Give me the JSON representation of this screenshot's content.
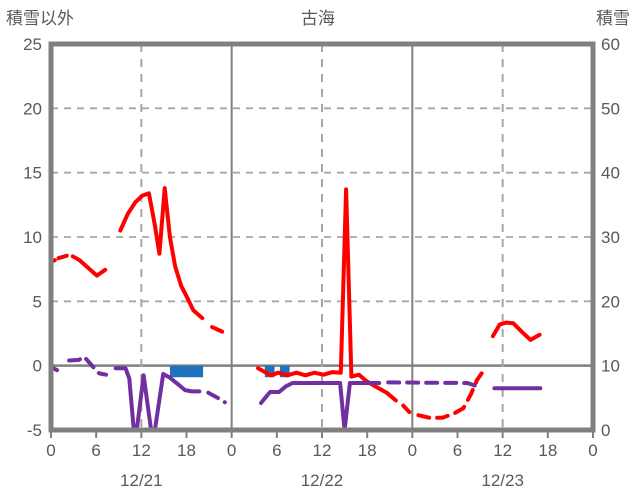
{
  "chart_data": {
    "type": "line",
    "title": "古海",
    "left_axis": {
      "label": "積雪以外",
      "min": -5,
      "max": 25,
      "ticks": [
        "25",
        "20",
        "15",
        "10",
        "5",
        "0",
        "-5"
      ]
    },
    "right_axis": {
      "label": "積雪",
      "min": 0,
      "max": 60,
      "ticks": [
        "60",
        "50",
        "40",
        "30",
        "20",
        "10",
        "0"
      ]
    },
    "x_axis": {
      "hours_total": 72,
      "hour_tick_step": 6,
      "hour_cycle_labels": [
        "0",
        "6",
        "12",
        "18"
      ],
      "final_hour_label": "0",
      "day_labels": [
        "12/21",
        "12/22",
        "12/23"
      ],
      "grid": {
        "solid_day_boundaries_hours": [
          24,
          48
        ],
        "dashed_noon_hours": [
          12,
          36,
          60
        ]
      }
    },
    "grid_on": true,
    "legend": "none",
    "series": [
      {
        "name": "series-red",
        "color": "#FF0000",
        "axis": "left",
        "segments": [
          {
            "style": "solid",
            "points": [
              [
                0,
                8.05
              ],
              [
                0.5,
                8.2
              ]
            ]
          },
          {
            "style": "dashed",
            "points": [
              [
                1.0,
                8.35
              ],
              [
                2.1,
                8.55
              ]
            ]
          },
          {
            "style": "solid",
            "points": [
              [
                2.9,
                8.5
              ],
              [
                3.8,
                8.2
              ],
              [
                6.1,
                7.0
              ],
              [
                7.2,
                7.45
              ]
            ]
          },
          {
            "style": "solid",
            "points": [
              [
                9.2,
                10.5
              ],
              [
                10.2,
                11.8
              ],
              [
                11.2,
                12.7
              ],
              [
                12.1,
                13.2
              ],
              [
                13.0,
                13.4
              ],
              [
                13.8,
                10.9
              ],
              [
                14.4,
                8.7
              ],
              [
                15.1,
                13.8
              ],
              [
                15.8,
                10.0
              ],
              [
                16.5,
                7.7
              ],
              [
                17.3,
                6.2
              ],
              [
                18.0,
                5.4
              ],
              [
                18.9,
                4.3
              ],
              [
                20.1,
                3.7
              ]
            ]
          },
          {
            "style": "dashed",
            "points": [
              [
                21.4,
                3.0
              ],
              [
                22.9,
                2.6
              ]
            ]
          },
          {
            "style": "solid",
            "points": [
              [
                27.5,
                -0.2
              ],
              [
                29.2,
                -0.75
              ],
              [
                30.2,
                -0.55
              ],
              [
                31.4,
                -0.75
              ],
              [
                32.6,
                -0.55
              ],
              [
                33.8,
                -0.75
              ],
              [
                35.0,
                -0.55
              ],
              [
                36.2,
                -0.7
              ],
              [
                37.4,
                -0.5
              ],
              [
                38.5,
                -0.55
              ],
              [
                39.2,
                13.7
              ],
              [
                39.9,
                -0.85
              ],
              [
                40.9,
                -0.7
              ],
              [
                41.9,
                -1.2
              ],
              [
                43.2,
                -1.65
              ],
              [
                44.6,
                -2.1
              ],
              [
                45.8,
                -2.7
              ]
            ]
          },
          {
            "style": "dashed",
            "points": [
              [
                46.8,
                -3.1
              ],
              [
                47.6,
                -3.6
              ]
            ]
          },
          {
            "style": "dashed",
            "points": [
              [
                48.8,
                -3.85
              ],
              [
                50.3,
                -4.05
              ],
              [
                52.0,
                -4.05
              ],
              [
                53.6,
                -3.7
              ],
              [
                54.8,
                -3.3
              ],
              [
                55.8,
                -2.2
              ],
              [
                56.6,
                -1.1
              ],
              [
                57.2,
                -0.6
              ]
            ]
          },
          {
            "style": "solid",
            "points": [
              [
                58.7,
                2.3
              ],
              [
                59.6,
                3.2
              ],
              [
                60.5,
                3.35
              ],
              [
                61.4,
                3.3
              ],
              [
                62.6,
                2.6
              ],
              [
                63.7,
                2.0
              ],
              [
                64.9,
                2.4
              ]
            ]
          }
        ]
      },
      {
        "name": "series-purple",
        "color": "#7030A0",
        "axis": "left",
        "segments": [
          {
            "style": "dashed",
            "points": [
              [
                0,
                -0.1
              ],
              [
                0.8,
                -0.35
              ]
            ]
          },
          {
            "style": "dashed",
            "points": [
              [
                2.4,
                0.4
              ],
              [
                3.7,
                0.45
              ],
              [
                4.4,
                0.7
              ],
              [
                5.6,
                -0.1
              ],
              [
                6.4,
                -0.6
              ],
              [
                7.3,
                -0.7
              ]
            ]
          },
          {
            "style": "solid",
            "points": [
              [
                8.6,
                -0.2
              ],
              [
                9.9,
                -0.2
              ],
              [
                10.4,
                -1.0
              ],
              [
                11.0,
                -5.0
              ],
              [
                11.4,
                -5.0
              ],
              [
                12.3,
                -0.75
              ],
              [
                13.3,
                -5.0
              ],
              [
                13.8,
                -5.0
              ],
              [
                14.9,
                -0.65
              ],
              [
                15.7,
                -0.9
              ],
              [
                17.0,
                -1.5
              ],
              [
                17.8,
                -1.9
              ],
              [
                18.7,
                -2.0
              ],
              [
                19.7,
                -2.0
              ]
            ]
          },
          {
            "style": "dashed",
            "points": [
              [
                20.9,
                -2.1
              ],
              [
                22.3,
                -2.55
              ],
              [
                23.1,
                -2.85
              ]
            ]
          },
          {
            "style": "solid",
            "points": [
              [
                27.9,
                -2.9
              ],
              [
                28.6,
                -2.4
              ],
              [
                29.1,
                -2.05
              ],
              [
                30.3,
                -2.05
              ],
              [
                31.2,
                -1.6
              ],
              [
                32.1,
                -1.35
              ],
              [
                38.4,
                -1.35
              ],
              [
                39.0,
                -5.0
              ],
              [
                39.7,
                -1.35
              ],
              [
                43.6,
                -1.35
              ]
            ]
          },
          {
            "style": "dashed",
            "points": [
              [
                44.8,
                -1.3
              ],
              [
                55.3,
                -1.35
              ],
              [
                56.6,
                -1.6
              ]
            ]
          },
          {
            "style": "solid",
            "points": [
              [
                58.9,
                -1.75
              ],
              [
                65.0,
                -1.75
              ]
            ]
          }
        ]
      }
    ],
    "bars": {
      "name": "bars-blue",
      "color": "#1F72BE",
      "axis": "left",
      "top_value": 0,
      "bottom_value": -0.9,
      "hour_ranges": [
        [
          15.8,
          20.2
        ],
        [
          28.4,
          29.7
        ],
        [
          30.4,
          31.7
        ]
      ]
    },
    "colors": {
      "border": "#808080",
      "gridline": "#A6A6A6",
      "zero_line": "#808080",
      "text": "#595959"
    }
  }
}
